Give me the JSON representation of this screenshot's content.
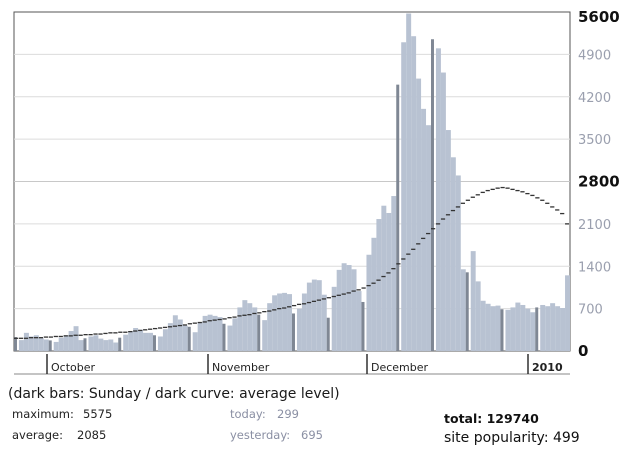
{
  "chart_data": {
    "type": "bar",
    "x_labels": [
      "October",
      "November",
      "December",
      "2010"
    ],
    "y_ticks": [
      {
        "value": 5600,
        "label": "5600",
        "major": true
      },
      {
        "value": 4900,
        "label": "4900",
        "major": false
      },
      {
        "value": 4200,
        "label": "4200",
        "major": false
      },
      {
        "value": 3500,
        "label": "3500",
        "major": false
      },
      {
        "value": 2800,
        "label": "2800",
        "major": true
      },
      {
        "value": 2100,
        "label": "2100",
        "major": false
      },
      {
        "value": 1400,
        "label": "1400",
        "major": false
      },
      {
        "value": 700,
        "label": "700",
        "major": false
      },
      {
        "value": 0,
        "label": "0",
        "major": true
      }
    ],
    "ylim": [
      0,
      5600
    ],
    "grid": "horizontal at major ticks",
    "colors": {
      "bar": "#b8c2d2",
      "sunday_bar": "#7f8794",
      "average_curve": "#333333",
      "grid": "#c8c8c8"
    },
    "values": [
      230,
      180,
      300,
      240,
      260,
      210,
      190,
      175,
      150,
      220,
      260,
      330,
      410,
      180,
      210,
      240,
      260,
      205,
      180,
      190,
      140,
      220,
      270,
      330,
      380,
      350,
      300,
      300,
      260,
      240,
      360,
      460,
      590,
      520,
      420,
      400,
      310,
      480,
      580,
      600,
      580,
      560,
      450,
      420,
      540,
      720,
      840,
      790,
      720,
      600,
      510,
      790,
      920,
      950,
      960,
      940,
      620,
      700,
      950,
      1130,
      1180,
      1170,
      930,
      550,
      1060,
      1340,
      1450,
      1420,
      1350,
      990,
      810,
      1590,
      1870,
      2180,
      2400,
      2280,
      2560,
      4400,
      5100,
      5575,
      5200,
      4500,
      4000,
      3730,
      5150,
      5000,
      4600,
      3650,
      3200,
      2900,
      1350,
      1300,
      1650,
      1150,
      830,
      780,
      740,
      750,
      690,
      680,
      720,
      800,
      760,
      700,
      640,
      720,
      760,
      740,
      790,
      740,
      710,
      1250
    ],
    "average": [
      210,
      210,
      210,
      220,
      220,
      220,
      230,
      230,
      240,
      240,
      250,
      250,
      260,
      260,
      270,
      270,
      280,
      280,
      290,
      300,
      300,
      310,
      310,
      320,
      330,
      340,
      350,
      360,
      370,
      380,
      390,
      400,
      410,
      420,
      430,
      450,
      460,
      470,
      480,
      500,
      510,
      520,
      530,
      550,
      560,
      580,
      590,
      600,
      620,
      630,
      650,
      660,
      680,
      700,
      710,
      730,
      750,
      770,
      780,
      800,
      820,
      840,
      860,
      880,
      900,
      920,
      940,
      960,
      990,
      1010,
      1040,
      1080,
      1120,
      1170,
      1230,
      1290,
      1360,
      1440,
      1520,
      1600,
      1680,
      1770,
      1860,
      1940,
      2020,
      2100,
      2180,
      2250,
      2320,
      2380,
      2440,
      2490,
      2540,
      2580,
      2620,
      2650,
      2670,
      2690,
      2700,
      2690,
      2670,
      2650,
      2630,
      2600,
      2570,
      2530,
      2490,
      2440,
      2380,
      2330,
      2270,
      2100
    ],
    "sunday_indices": [
      0,
      7,
      14,
      21,
      28,
      35,
      42,
      49,
      56,
      63,
      70,
      77,
      84,
      91,
      98,
      105,
      112
    ]
  },
  "legend_note": "(dark bars: Sunday / dark curve: average level)",
  "stats": {
    "maximum_label": "maximum:",
    "maximum_value": "5575",
    "average_label": "average:",
    "average_value": "2085",
    "today_label": "today:",
    "today_value": "299",
    "yesterday_label": "yesterday:",
    "yesterday_value": "695"
  },
  "total": "total: 129740",
  "site_popularity": "site popularity: 499"
}
